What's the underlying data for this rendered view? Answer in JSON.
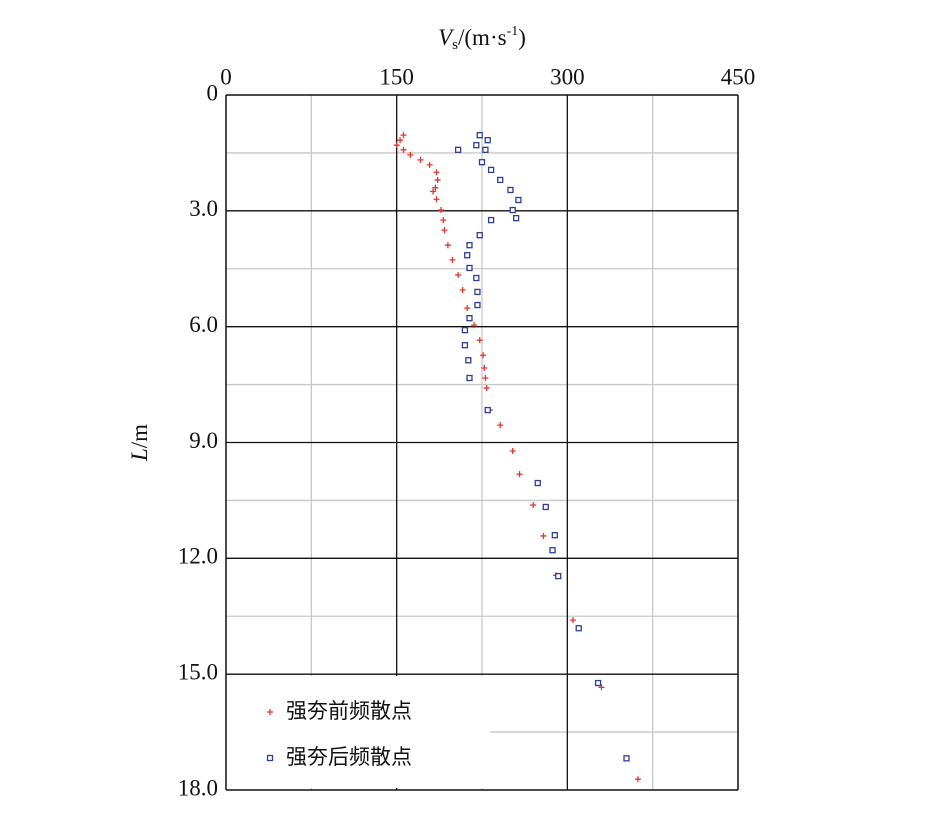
{
  "chart_data": {
    "type": "scatter",
    "x_label": [
      "V",
      "s",
      "/(m·s",
      "-1",
      ")"
    ],
    "y_label": [
      "L",
      "/m"
    ],
    "xlim": [
      0,
      450
    ],
    "ylim": [
      0,
      18
    ],
    "xticks": [
      0,
      150,
      300,
      450
    ],
    "yticks": [
      0,
      {
        "value": 3,
        "label": "3.0"
      },
      {
        "value": 6,
        "label": "6.0"
      },
      {
        "value": 9,
        "label": "9.0"
      },
      {
        "value": 12,
        "label": "12.0"
      },
      {
        "value": 15,
        "label": "15.0"
      },
      {
        "value": 18,
        "label": "18.0"
      }
    ],
    "minor_xticks": [
      75,
      225,
      375
    ],
    "minor_yticks": [
      1.5,
      4.5,
      7.5,
      10.5,
      13.5,
      16.5
    ],
    "y_inverted": true,
    "x_axis_top": true,
    "grid": true,
    "legend": "lower left",
    "series": [
      {
        "name": "强夯前频散点",
        "color": "#e8342a",
        "marker": "plus",
        "x": [
          156,
          153,
          150,
          156,
          162,
          171,
          179,
          185,
          186,
          184,
          182,
          185,
          189,
          191,
          192,
          195,
          199,
          204,
          208,
          212,
          218,
          223,
          226,
          227,
          228,
          229,
          232,
          241,
          252,
          258,
          270,
          279,
          290,
          305,
          330,
          362
        ],
        "values": [
          1.04,
          1.17,
          1.3,
          1.42,
          1.55,
          1.68,
          1.81,
          2.0,
          2.2,
          2.4,
          2.5,
          2.7,
          2.98,
          3.24,
          3.5,
          3.89,
          4.27,
          4.66,
          5.05,
          5.52,
          5.96,
          6.35,
          6.74,
          7.07,
          7.33,
          7.59,
          8.16,
          8.55,
          9.22,
          9.82,
          10.62,
          11.42,
          12.44,
          13.6,
          15.34,
          17.72
        ]
      },
      {
        "name": "强夯后频散点",
        "color": "#2b3f99",
        "marker": "square",
        "x": [
          223,
          230,
          220,
          204,
          228,
          225,
          233,
          241,
          250,
          257,
          252,
          255,
          233,
          223,
          214,
          212,
          214,
          220,
          221,
          221,
          214,
          210,
          210,
          213,
          214,
          230,
          274,
          281,
          289,
          287,
          292,
          310,
          327,
          352
        ],
        "values": [
          1.04,
          1.17,
          1.3,
          1.42,
          1.42,
          1.74,
          1.94,
          2.2,
          2.46,
          2.72,
          2.98,
          3.19,
          3.24,
          3.63,
          3.89,
          4.15,
          4.48,
          4.74,
          5.1,
          5.44,
          5.78,
          6.09,
          6.48,
          6.87,
          7.33,
          8.16,
          10.05,
          10.67,
          11.4,
          11.79,
          12.46,
          13.81,
          15.23,
          17.18
        ]
      }
    ]
  }
}
